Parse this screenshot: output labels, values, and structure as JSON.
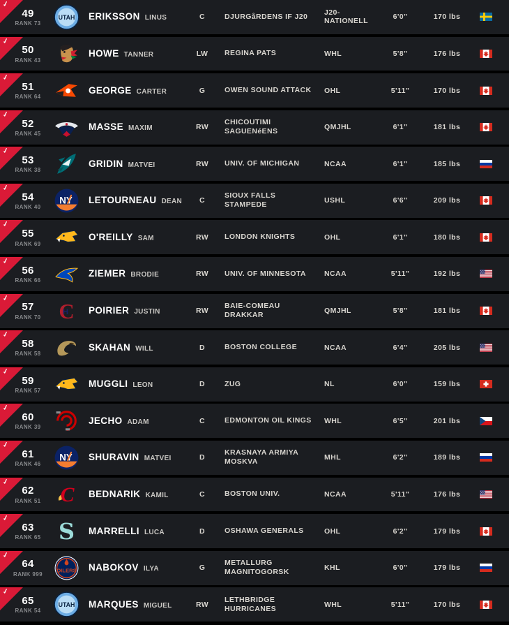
{
  "colors": {
    "accent_red": "#da1a37",
    "row_background": "#1b1d21",
    "page_background": "#000000"
  },
  "icons": {
    "check": "✓"
  },
  "list": {
    "rows": [
      {
        "pick": "49",
        "rank_label": "RANK 73",
        "team_logo": "utah",
        "last_name": "ERIKSSON",
        "first_name": "LINUS",
        "position": "C",
        "club": "DJURGåRDENS IF J20",
        "league": "J20-NATIONELL",
        "height": "6'0\"",
        "weight": "170 lbs",
        "flag": "sweden"
      },
      {
        "pick": "50",
        "rank_label": "RANK 43",
        "team_logo": "blackhawks",
        "last_name": "HOWE",
        "first_name": "TANNER",
        "position": "LW",
        "club": "REGINA PATS",
        "league": "WHL",
        "height": "5'8\"",
        "weight": "176 lbs",
        "flag": "canada"
      },
      {
        "pick": "51",
        "rank_label": "RANK 64",
        "team_logo": "flyers",
        "last_name": "GEORGE",
        "first_name": "CARTER",
        "position": "G",
        "club": "OWEN SOUND ATTACK",
        "league": "OHL",
        "height": "5'11\"",
        "weight": "170 lbs",
        "flag": "canada"
      },
      {
        "pick": "52",
        "rank_label": "RANK 45",
        "team_logo": "capitals",
        "last_name": "MASSE",
        "first_name": "MAXIM",
        "position": "RW",
        "club": "CHICOUTIMI SAGUENéENS",
        "league": "QMJHL",
        "height": "6'1\"",
        "weight": "181 lbs",
        "flag": "canada"
      },
      {
        "pick": "53",
        "rank_label": "RANK 38",
        "team_logo": "sharks",
        "last_name": "GRIDIN",
        "first_name": "MATVEI",
        "position": "RW",
        "club": "UNIV. OF MICHIGAN",
        "league": "NCAA",
        "height": "6'1\"",
        "weight": "185 lbs",
        "flag": "russia"
      },
      {
        "pick": "54",
        "rank_label": "RANK 40",
        "team_logo": "islanders",
        "last_name": "LETOURNEAU",
        "first_name": "DEAN",
        "position": "C",
        "club": "SIOUX FALLS STAMPEDE",
        "league": "USHL",
        "height": "6'6\"",
        "weight": "209 lbs",
        "flag": "canada"
      },
      {
        "pick": "55",
        "rank_label": "RANK 69",
        "team_logo": "predators",
        "last_name": "O'REILLY",
        "first_name": "SAM",
        "position": "RW",
        "club": "LONDON KNIGHTS",
        "league": "OHL",
        "height": "6'1\"",
        "weight": "180 lbs",
        "flag": "canada"
      },
      {
        "pick": "56",
        "rank_label": "RANK 66",
        "team_logo": "blues",
        "last_name": "ZIEMER",
        "first_name": "BRODIE",
        "position": "RW",
        "club": "UNIV. OF MINNESOTA",
        "league": "NCAA",
        "height": "5'11\"",
        "weight": "192 lbs",
        "flag": "usa"
      },
      {
        "pick": "57",
        "rank_label": "RANK 70",
        "team_logo": "canadiens",
        "last_name": "POIRIER",
        "first_name": "JUSTIN",
        "position": "RW",
        "club": "BAIE-COMEAU DRAKKAR",
        "league": "QMJHL",
        "height": "5'8\"",
        "weight": "181 lbs",
        "flag": "canada"
      },
      {
        "pick": "58",
        "rank_label": "RANK 58",
        "team_logo": "ducks",
        "last_name": "SKAHAN",
        "first_name": "WILL",
        "position": "D",
        "club": "BOSTON COLLEGE",
        "league": "NCAA",
        "height": "6'4\"",
        "weight": "205 lbs",
        "flag": "usa"
      },
      {
        "pick": "59",
        "rank_label": "RANK 57",
        "team_logo": "predators",
        "last_name": "MUGGLI",
        "first_name": "LEON",
        "position": "D",
        "club": "ZUG",
        "league": "NL",
        "height": "6'0\"",
        "weight": "159 lbs",
        "flag": "switzerland"
      },
      {
        "pick": "60",
        "rank_label": "RANK 39",
        "team_logo": "hurricanes",
        "last_name": "JECHO",
        "first_name": "ADAM",
        "position": "C",
        "club": "EDMONTON OIL KINGS",
        "league": "WHL",
        "height": "6'5\"",
        "weight": "201 lbs",
        "flag": "czechia"
      },
      {
        "pick": "61",
        "rank_label": "RANK 46",
        "team_logo": "islanders",
        "last_name": "SHURAVIN",
        "first_name": "MATVEI",
        "position": "D",
        "club": "KRASNAYA ARMIYA MOSKVA",
        "league": "MHL",
        "height": "6'2\"",
        "weight": "189 lbs",
        "flag": "russia"
      },
      {
        "pick": "62",
        "rank_label": "RANK 51",
        "team_logo": "flames",
        "last_name": "BEDNARIK",
        "first_name": "KAMIL",
        "position": "C",
        "club": "BOSTON UNIV.",
        "league": "NCAA",
        "height": "5'11\"",
        "weight": "176 lbs",
        "flag": "usa"
      },
      {
        "pick": "63",
        "rank_label": "RANK 65",
        "team_logo": "kraken",
        "last_name": "MARRELLI",
        "first_name": "LUCA",
        "position": "D",
        "club": "OSHAWA GENERALS",
        "league": "OHL",
        "height": "6'2\"",
        "weight": "179 lbs",
        "flag": "canada"
      },
      {
        "pick": "64",
        "rank_label": "RANK 999",
        "team_logo": "oilers",
        "last_name": "NABOKOV",
        "first_name": "ILYA",
        "position": "G",
        "club": "METALLURG MAGNITOGORSK",
        "league": "KHL",
        "height": "6'0\"",
        "weight": "179 lbs",
        "flag": "russia"
      },
      {
        "pick": "65",
        "rank_label": "RANK 54",
        "team_logo": "utah",
        "last_name": "MARQUES",
        "first_name": "MIGUEL",
        "position": "RW",
        "club": "LETHBRIDGE HURRICANES",
        "league": "WHL",
        "height": "5'11\"",
        "weight": "170 lbs",
        "flag": "canada"
      }
    ]
  }
}
